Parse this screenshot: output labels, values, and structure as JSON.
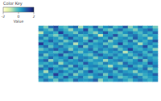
{
  "chart_data": {
    "type": "heatmap",
    "categories": [
      null,
      null,
      null,
      null,
      null,
      null,
      null,
      null,
      null,
      null,
      null,
      null,
      null,
      null,
      null,
      null,
      null,
      null,
      null,
      null,
      null,
      null,
      null,
      null
    ],
    "y_categories": [
      null,
      null,
      null,
      null,
      null,
      null,
      null,
      null,
      null,
      null,
      null,
      null,
      null,
      null,
      null,
      null,
      null,
      null,
      null,
      null
    ],
    "values": [
      [
        0.3,
        -0.5,
        0.8,
        1.2,
        0.1,
        -0.2,
        0.6,
        0.9,
        -0.8,
        0.4,
        0.2,
        1.0,
        -0.3,
        0.5,
        0.7,
        -0.1,
        0.3,
        1.1,
        -0.6,
        0.2,
        0.8,
        0.0,
        0.4,
        -0.4
      ],
      [
        0.6,
        0.2,
        -0.3,
        0.9,
        0.5,
        0.1,
        -0.7,
        0.4,
        0.3,
        1.3,
        -0.2,
        0.5,
        0.8,
        0.0,
        -0.4,
        0.6,
        0.9,
        0.2,
        0.1,
        -0.5,
        0.4,
        0.7,
        1.0,
        0.2
      ],
      [
        -0.9,
        0.4,
        0.5,
        0.1,
        1.4,
        0.3,
        0.2,
        -0.4,
        0.7,
        0.6,
        0.0,
        -0.6,
        0.4,
        1.1,
        0.3,
        0.2,
        -0.2,
        0.5,
        0.8,
        0.3,
        -0.1,
        0.6,
        0.2,
        0.9
      ],
      [
        0.2,
        0.8,
        0.1,
        -0.5,
        0.3,
        0.9,
        0.4,
        0.6,
        -0.1,
        0.2,
        0.7,
        0.3,
        -1.0,
        0.5,
        0.4,
        1.2,
        0.1,
        -0.3,
        0.6,
        0.8,
        0.2,
        -0.2,
        0.5,
        0.3
      ],
      [
        0.7,
        -0.1,
        0.6,
        0.4,
        -0.3,
        0.5,
        1.1,
        0.2,
        0.4,
        -0.6,
        0.3,
        0.8,
        0.5,
        0.1,
        0.9,
        -0.2,
        0.4,
        0.6,
        0.0,
        1.0,
        0.3,
        0.5,
        -0.7,
        0.4
      ],
      [
        0.1,
        0.5,
        1.0,
        0.3,
        0.6,
        -0.4,
        0.2,
        0.8,
        0.5,
        0.1,
        1.2,
        -0.1,
        0.3,
        0.7,
        -0.5,
        0.4,
        0.6,
        0.2,
        0.9,
        -0.3,
        0.5,
        0.1,
        0.6,
        1.1
      ],
      [
        1.5,
        0.3,
        0.2,
        0.7,
        -0.2,
        0.4,
        0.6,
        -0.9,
        0.3,
        0.8,
        0.1,
        0.4,
        0.6,
        -0.3,
        0.2,
        0.5,
        1.3,
        0.0,
        0.4,
        0.6,
        -0.8,
        0.3,
        0.7,
        0.2
      ],
      [
        0.4,
        0.9,
        -0.2,
        0.5,
        0.8,
        0.2,
        0.0,
        0.3,
        1.0,
        -0.4,
        0.6,
        0.2,
        0.4,
        0.8,
        0.1,
        -0.6,
        0.3,
        0.7,
        0.5,
        0.1,
        0.4,
        1.2,
        0.0,
        0.6
      ],
      [
        -0.3,
        0.2,
        0.7,
        1.1,
        0.4,
        0.6,
        -0.5,
        0.5,
        0.2,
        0.4,
        0.9,
        0.0,
        0.7,
        0.3,
        0.6,
        0.8,
        -0.2,
        0.4,
        1.4,
        0.3,
        0.1,
        0.5,
        0.3,
        -0.6
      ],
      [
        0.5,
        0.6,
        0.3,
        -0.1,
        0.2,
        1.0,
        0.7,
        0.1,
        -0.4,
        0.5,
        0.3,
        0.9,
        0.2,
        -0.2,
        0.5,
        0.3,
        0.6,
        -0.9,
        0.2,
        0.7,
        0.6,
        0.0,
        0.8,
        0.4
      ],
      [
        0.8,
        -0.4,
        0.4,
        0.6,
        1.2,
        -0.1,
        0.3,
        0.6,
        0.5,
        0.0,
        -0.3,
        0.6,
        1.0,
        0.4,
        0.2,
        0.7,
        0.1,
        0.5,
        -0.2,
        0.4,
        0.9,
        0.3,
        -0.1,
        0.7
      ],
      [
        0.0,
        0.3,
        0.9,
        0.2,
        0.5,
        0.4,
        1.3,
        -0.2,
        0.6,
        0.7,
        0.4,
        -0.5,
        0.3,
        0.6,
        1.0,
        0.1,
        0.5,
        0.3,
        0.6,
        -0.4,
        0.2,
        0.8,
        0.4,
        0.1
      ],
      [
        0.6,
        1.0,
        -0.6,
        0.4,
        0.1,
        0.7,
        0.2,
        0.5,
        0.9,
        0.3,
        -0.1,
        0.4,
        0.5,
        -0.7,
        0.3,
        0.6,
        0.8,
        0.2,
        0.0,
        0.5,
        1.1,
        -0.3,
        0.6,
        0.3
      ],
      [
        0.3,
        0.1,
        0.5,
        0.8,
        -0.7,
        0.3,
        0.6,
        0.4,
        0.1,
        1.1,
        0.5,
        0.2,
        -0.2,
        0.7,
        0.4,
        0.2,
        -0.5,
        0.9,
        0.3,
        0.6,
        0.4,
        0.2,
        1.2,
        0.5
      ],
      [
        -0.2,
        0.7,
        0.3,
        0.0,
        0.6,
        0.8,
        -0.3,
        1.0,
        0.4,
        0.2,
        0.6,
        0.7,
        0.3,
        0.1,
        -0.8,
        0.5,
        0.4,
        0.6,
        1.0,
        0.2,
        -0.2,
        0.6,
        0.3,
        0.8
      ],
      [
        0.9,
        0.4,
        1.2,
        0.5,
        0.3,
        -0.2,
        0.5,
        0.2,
        0.7,
        -0.3,
        0.4,
        0.1,
        0.8,
        0.5,
        0.3,
        1.0,
        0.2,
        -0.4,
        0.5,
        0.7,
        0.3,
        0.9,
        -0.5,
        0.2
      ],
      [
        0.4,
        -0.8,
        0.6,
        0.3,
        0.9,
        0.5,
        0.1,
        0.7,
        -0.2,
        0.6,
        1.3,
        0.3,
        0.1,
        0.6,
        0.7,
        -0.1,
        0.8,
        0.4,
        0.2,
        -0.6,
        0.5,
        0.4,
        0.7,
        0.0
      ],
      [
        0.1,
        0.5,
        0.2,
        1.4,
        0.4,
        0.0,
        0.8,
        -0.5,
        0.3,
        0.5,
        0.2,
        0.6,
        0.9,
        -0.4,
        0.5,
        0.3,
        0.1,
        0.7,
        0.6,
        0.4,
        -0.3,
        0.2,
        0.5,
        1.0
      ],
      [
        0.7,
        0.3,
        -0.4,
        0.6,
        0.2,
        1.1,
        0.4,
        0.3,
        0.8,
        0.1,
        -0.5,
        0.5,
        0.4,
        0.2,
        1.2,
        0.6,
        -0.3,
        0.1,
        0.4,
        0.9,
        0.6,
        -0.1,
        0.3,
        0.5
      ],
      [
        0.2,
        0.8,
        0.4,
        -0.3,
        0.7,
        0.3,
        -0.1,
        0.9,
        0.5,
        0.4,
        0.6,
        1.0,
        -0.6,
        0.3,
        0.1,
        0.5,
        0.7,
        0.3,
        -0.2,
        0.5,
        0.8,
        0.4,
        0.1,
        0.6
      ]
    ],
    "colorbar": {
      "title": "Color Key",
      "label": "Value",
      "range": [
        -2,
        2
      ],
      "ticks": [
        -2,
        0,
        2
      ]
    },
    "tick_labels": false
  }
}
